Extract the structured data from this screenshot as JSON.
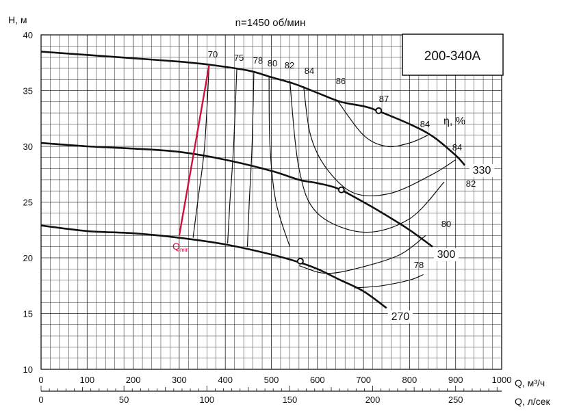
{
  "chart_data": {
    "type": "line",
    "title": "n=1450 об/мин",
    "model_label": "200-340А",
    "ylabel": "H, м",
    "xlabel": "Q, м³/ч",
    "x2label": "Q, л/сек",
    "eta_label": "η, %",
    "qmin_label": "Q",
    "qmin_sub": "min",
    "xlim": [
      0,
      1000
    ],
    "ylim": [
      10,
      40
    ],
    "x_ticks": [
      0,
      100,
      200,
      300,
      400,
      500,
      600,
      700,
      800,
      900,
      1000
    ],
    "y_ticks": [
      10,
      15,
      20,
      25,
      30,
      35,
      40
    ],
    "x2_ticks": [
      0,
      50,
      100,
      150,
      200,
      250
    ],
    "grid": true,
    "series": [
      {
        "name": "330",
        "x": [
          0,
          100,
          200,
          300,
          370,
          450,
          500,
          550,
          600,
          650,
          700,
          730,
          800,
          850,
          900,
          920
        ],
        "y": [
          38.5,
          38.2,
          37.9,
          37.6,
          37.3,
          36.8,
          36.2,
          35.6,
          34.8,
          34.0,
          33.6,
          33.2,
          32.0,
          30.9,
          29.2,
          28.3
        ]
      },
      {
        "name": "300",
        "x": [
          0,
          100,
          200,
          300,
          400,
          500,
          560,
          600,
          645,
          700,
          750,
          800,
          850
        ],
        "y": [
          30.3,
          30.0,
          29.8,
          29.5,
          28.8,
          27.8,
          27.0,
          26.7,
          26.2,
          25.0,
          23.8,
          22.5,
          21.0
        ]
      },
      {
        "name": "270",
        "x": [
          0,
          100,
          200,
          300,
          400,
          500,
          560,
          600,
          650,
          700,
          750
        ],
        "y": [
          22.9,
          22.4,
          22.2,
          21.8,
          21.2,
          20.3,
          19.6,
          19.0,
          18.0,
          17.0,
          15.5
        ]
      }
    ],
    "qmin_line": {
      "x": [
        300,
        365
      ],
      "y": [
        22.0,
        37.3
      ]
    },
    "efficiency_curves": [
      {
        "label": "70",
        "x": [
          365,
          355,
          340,
          330
        ],
        "y": [
          37.3,
          30.0,
          25.0,
          21.8
        ]
      },
      {
        "label": "75",
        "x": [
          425,
          418,
          410,
          405
        ],
        "y": [
          36.9,
          30.0,
          25.0,
          21.3
        ]
      },
      {
        "label": "78",
        "x": [
          462,
          458,
          452,
          448
        ],
        "y": [
          36.6,
          30.0,
          25.0,
          21.0
        ]
      },
      {
        "label": "80",
        "x": [
          495,
          497,
          510,
          540
        ],
        "y": [
          36.3,
          30.0,
          25.0,
          21.0
        ]
      },
      {
        "label": "82",
        "x": [
          540,
          560,
          600,
          700,
          800,
          875
        ],
        "y": [
          35.9,
          28.0,
          24.0,
          22.3,
          23.5,
          26.8
        ]
      },
      {
        "label": "84",
        "x": [
          570,
          585,
          620,
          680,
          760,
          850,
          900
        ],
        "y": [
          35.4,
          31.0,
          28.0,
          25.8,
          25.8,
          27.5,
          28.8
        ]
      },
      {
        "label": "84",
        "x": [
          645,
          700,
          750,
          800,
          840
        ],
        "y": [
          34.0,
          31.0,
          30.0,
          30.3,
          31.0
        ]
      },
      {
        "label": "80",
        "x": [
          560,
          620,
          700,
          780,
          835
        ],
        "y": [
          19.3,
          18.6,
          19.2,
          20.3,
          22.0
        ]
      },
      {
        "label": "78",
        "x": [
          680,
          740,
          800,
          830
        ],
        "y": [
          17.3,
          17.5,
          18.0,
          18.5
        ]
      }
    ],
    "operating_points": [
      {
        "x": 733,
        "y": 33.2,
        "label": "87"
      },
      {
        "x": 652,
        "y": 26.1
      },
      {
        "x": 563,
        "y": 19.7
      }
    ]
  }
}
